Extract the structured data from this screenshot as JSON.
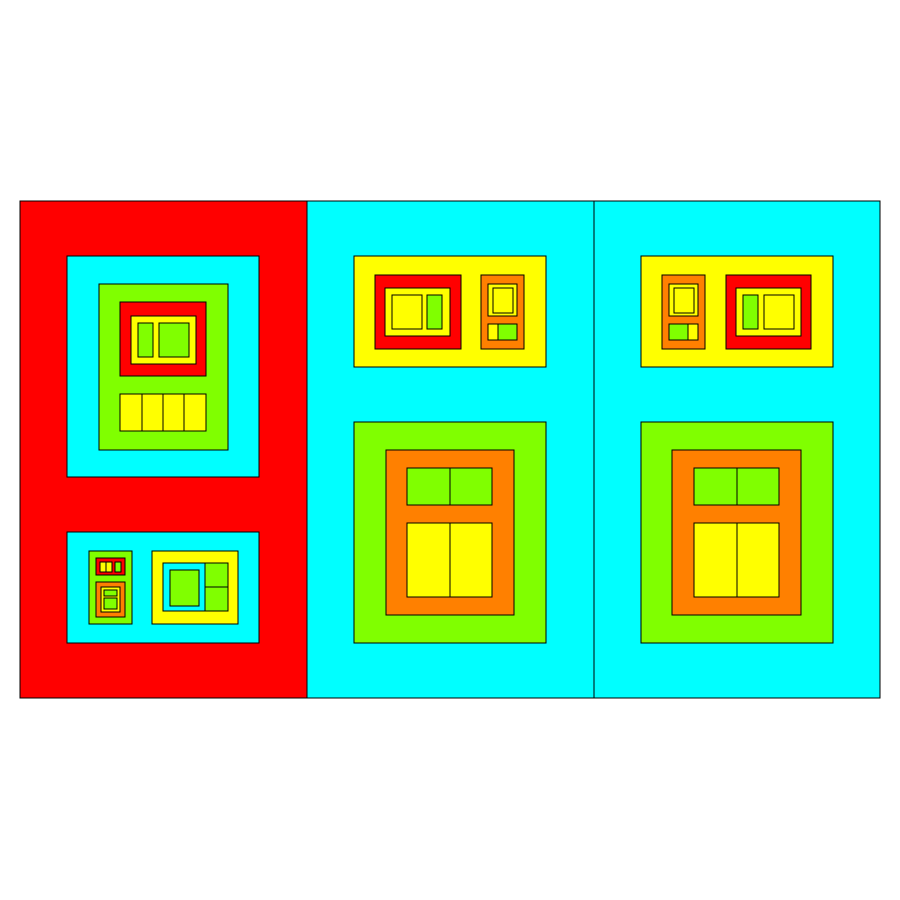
{
  "colors": {
    "red": "#ff0000",
    "cyan": "#00ffff",
    "green": "#80ff00",
    "yellow": "#ffff00",
    "orange": "#ff8000",
    "background": "#ffffff",
    "outline": "#000000"
  },
  "layout": {
    "panels": [
      {
        "name": "panel-left",
        "color": "red"
      },
      {
        "name": "panel-middle",
        "color": "cyan"
      },
      {
        "name": "panel-right",
        "color": "cyan"
      }
    ]
  }
}
